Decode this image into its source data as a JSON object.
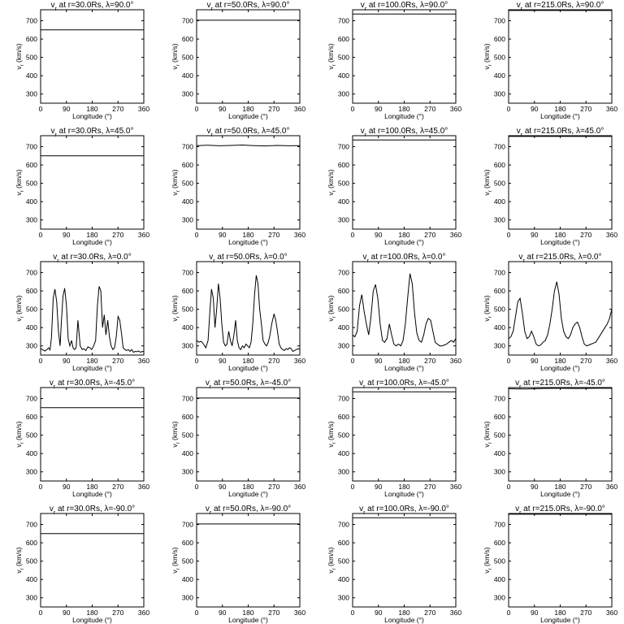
{
  "chart_data": [
    {
      "type": "line",
      "title": "v_r at r=30.0Rs, λ=90.0°",
      "radius": "30.0Rs",
      "latitude": "90.0°",
      "xlabel": "Longitude (°)",
      "ylabel": "v_r (km/s)",
      "xlim": [
        0,
        360
      ],
      "ylim": [
        250,
        760
      ],
      "xticks": [
        0,
        90,
        180,
        270,
        360
      ],
      "yticks": [
        300,
        400,
        500,
        600,
        700
      ],
      "x": [
        0,
        360
      ],
      "y": [
        650,
        650
      ]
    },
    {
      "type": "line",
      "title": "v_r at r=50.0Rs, λ=90.0°",
      "radius": "50.0Rs",
      "latitude": "90.0°",
      "xlabel": "Longitude (°)",
      "ylabel": "v_r (km/s)",
      "xlim": [
        0,
        360
      ],
      "ylim": [
        250,
        760
      ],
      "xticks": [
        0,
        90,
        180,
        270,
        360
      ],
      "yticks": [
        300,
        400,
        500,
        600,
        700
      ],
      "x": [
        0,
        360
      ],
      "y": [
        703,
        703
      ]
    },
    {
      "type": "line",
      "title": "v_r at r=100.0Rs, λ=90.0°",
      "radius": "100.0Rs",
      "latitude": "90.0°",
      "xlabel": "Longitude (°)",
      "ylabel": "v_r (km/s)",
      "xlim": [
        0,
        360
      ],
      "ylim": [
        250,
        760
      ],
      "xticks": [
        0,
        90,
        180,
        270,
        360
      ],
      "yticks": [
        300,
        400,
        500,
        600,
        700
      ],
      "x": [
        0,
        360
      ],
      "y": [
        737,
        737
      ]
    },
    {
      "type": "line",
      "title": "v_r at r=215.0Rs, λ=90.0°",
      "radius": "215.0Rs",
      "latitude": "90.0°",
      "xlabel": "Longitude (°)",
      "ylabel": "v_r (km/s)",
      "xlim": [
        0,
        360
      ],
      "ylim": [
        250,
        760
      ],
      "xticks": [
        0,
        90,
        180,
        270,
        360
      ],
      "yticks": [
        300,
        400,
        500,
        600,
        700
      ],
      "x": [
        0,
        360
      ],
      "y": [
        756,
        756
      ]
    },
    {
      "type": "line",
      "title": "v_r at r=30.0Rs, λ=45.0°",
      "radius": "30.0Rs",
      "latitude": "45.0°",
      "xlabel": "Longitude (°)",
      "ylabel": "v_r (km/s)",
      "xlim": [
        0,
        360
      ],
      "ylim": [
        250,
        760
      ],
      "xticks": [
        0,
        90,
        180,
        270,
        360
      ],
      "yticks": [
        300,
        400,
        500,
        600,
        700
      ],
      "x": [
        0,
        360
      ],
      "y": [
        650,
        650
      ]
    },
    {
      "type": "line",
      "title": "v_r at r=50.0Rs, λ=45.0°",
      "radius": "50.0Rs",
      "latitude": "45.0°",
      "xlabel": "Longitude (°)",
      "ylabel": "v_r (km/s)",
      "xlim": [
        0,
        360
      ],
      "ylim": [
        250,
        760
      ],
      "xticks": [
        0,
        90,
        180,
        270,
        360
      ],
      "yticks": [
        300,
        400,
        500,
        600,
        700
      ],
      "x": [
        0,
        40,
        80,
        120,
        160,
        200,
        240,
        280,
        320,
        360
      ],
      "y": [
        706,
        708,
        705,
        707,
        709,
        706,
        704,
        707,
        705,
        706
      ]
    },
    {
      "type": "line",
      "title": "v_r at r=100.0Rs, λ=45.0°",
      "radius": "100.0Rs",
      "latitude": "45.0°",
      "xlabel": "Longitude (°)",
      "ylabel": "v_r (km/s)",
      "xlim": [
        0,
        360
      ],
      "ylim": [
        250,
        760
      ],
      "xticks": [
        0,
        90,
        180,
        270,
        360
      ],
      "yticks": [
        300,
        400,
        500,
        600,
        700
      ],
      "x": [
        0,
        360
      ],
      "y": [
        737,
        737
      ]
    },
    {
      "type": "line",
      "title": "v_r at r=215.0Rs, λ=45.0°",
      "radius": "215.0Rs",
      "latitude": "45.0°",
      "xlabel": "Longitude (°)",
      "ylabel": "v_r (km/s)",
      "xlim": [
        0,
        360
      ],
      "ylim": [
        250,
        760
      ],
      "xticks": [
        0,
        90,
        180,
        270,
        360
      ],
      "yticks": [
        300,
        400,
        500,
        600,
        700
      ],
      "x": [
        0,
        360
      ],
      "y": [
        756,
        756
      ]
    },
    {
      "type": "line",
      "title": "v_r at r=30.0Rs, λ=0.0°",
      "radius": "30.0Rs",
      "latitude": "0.0°",
      "xlabel": "Longitude (°)",
      "ylabel": "v_r (km/s)",
      "xlim": [
        0,
        360
      ],
      "ylim": [
        250,
        760
      ],
      "xticks": [
        0,
        90,
        180,
        270,
        360
      ],
      "yticks": [
        300,
        400,
        500,
        600,
        700
      ],
      "x": [
        0,
        8,
        15,
        22,
        28,
        33,
        38,
        44,
        50,
        56,
        62,
        68,
        72,
        78,
        84,
        90,
        96,
        102,
        108,
        113,
        118,
        124,
        130,
        138,
        145,
        150,
        158,
        165,
        172,
        178,
        185,
        192,
        198,
        204,
        210,
        216,
        222,
        228,
        234,
        240,
        246,
        252,
        258,
        264,
        270,
        276,
        282,
        288,
        294,
        300,
        306,
        312,
        318,
        324,
        330,
        336,
        342,
        348,
        354,
        360
      ],
      "y": [
        285,
        278,
        272,
        280,
        290,
        278,
        350,
        560,
        610,
        540,
        380,
        300,
        420,
        570,
        615,
        520,
        340,
        300,
        330,
        290,
        280,
        290,
        440,
        300,
        280,
        285,
        275,
        295,
        290,
        280,
        300,
        330,
        520,
        625,
        600,
        400,
        470,
        360,
        440,
        350,
        300,
        280,
        290,
        350,
        460,
        440,
        370,
        290,
        280,
        275,
        280,
        270,
        280,
        265,
        270,
        268,
        272,
        265,
        270,
        268
      ]
    },
    {
      "type": "line",
      "title": "v_r at r=50.0Rs, λ=0.0°",
      "radius": "50.0Rs",
      "latitude": "0.0°",
      "xlabel": "Longitude (°)",
      "ylabel": "v_r (km/s)",
      "xlim": [
        0,
        360
      ],
      "ylim": [
        250,
        760
      ],
      "xticks": [
        0,
        90,
        180,
        270,
        360
      ],
      "yticks": [
        300,
        400,
        500,
        600,
        700
      ],
      "x": [
        0,
        8,
        16,
        24,
        32,
        40,
        46,
        52,
        58,
        64,
        70,
        76,
        82,
        88,
        94,
        100,
        106,
        112,
        118,
        124,
        130,
        136,
        142,
        148,
        154,
        160,
        166,
        172,
        178,
        184,
        190,
        196,
        202,
        208,
        214,
        220,
        226,
        232,
        238,
        244,
        250,
        256,
        262,
        270,
        276,
        282,
        288,
        294,
        300,
        306,
        312,
        318,
        324,
        330,
        336,
        342,
        348,
        354,
        360
      ],
      "y": [
        330,
        320,
        325,
        310,
        290,
        330,
        480,
        610,
        560,
        400,
        500,
        640,
        560,
        420,
        320,
        300,
        310,
        380,
        330,
        300,
        360,
        440,
        330,
        290,
        280,
        300,
        290,
        310,
        300,
        290,
        320,
        420,
        580,
        685,
        640,
        500,
        420,
        330,
        310,
        300,
        320,
        360,
        420,
        475,
        440,
        380,
        310,
        290,
        280,
        275,
        285,
        280,
        290,
        285,
        270,
        275,
        280,
        285,
        280
      ]
    },
    {
      "type": "line",
      "title": "v_r at r=100.0Rs, λ=0.0°",
      "radius": "100.0Rs",
      "latitude": "0.0°",
      "xlabel": "Longitude (°)",
      "ylabel": "v_r (km/s)",
      "xlim": [
        0,
        360
      ],
      "ylim": [
        250,
        760
      ],
      "xticks": [
        0,
        90,
        180,
        270,
        360
      ],
      "yticks": [
        300,
        400,
        500,
        600,
        700
      ],
      "x": [
        0,
        8,
        16,
        24,
        32,
        40,
        48,
        56,
        64,
        72,
        80,
        88,
        96,
        104,
        112,
        120,
        128,
        136,
        144,
        152,
        160,
        168,
        176,
        184,
        192,
        200,
        208,
        216,
        224,
        232,
        240,
        248,
        256,
        264,
        272,
        280,
        288,
        296,
        304,
        312,
        320,
        328,
        336,
        344,
        352,
        360
      ],
      "y": [
        360,
        350,
        380,
        520,
        580,
        490,
        420,
        360,
        460,
        600,
        635,
        560,
        420,
        330,
        320,
        340,
        420,
        360,
        310,
        300,
        310,
        300,
        330,
        420,
        560,
        695,
        640,
        480,
        370,
        330,
        320,
        360,
        420,
        450,
        440,
        380,
        320,
        310,
        300,
        300,
        305,
        310,
        320,
        330,
        320,
        340
      ]
    },
    {
      "type": "line",
      "title": "v_r at r=215.0Rs, λ=0.0°",
      "radius": "215.0Rs",
      "latitude": "0.0°",
      "xlabel": "Longitude (°)",
      "ylabel": "v_r (km/s)",
      "xlim": [
        0,
        360
      ],
      "ylim": [
        250,
        760
      ],
      "xticks": [
        0,
        90,
        180,
        270,
        360
      ],
      "yticks": [
        300,
        400,
        500,
        600,
        700
      ],
      "x": [
        0,
        8,
        16,
        24,
        32,
        40,
        48,
        56,
        64,
        72,
        80,
        88,
        96,
        104,
        112,
        120,
        128,
        136,
        144,
        152,
        160,
        168,
        176,
        184,
        192,
        200,
        208,
        216,
        224,
        232,
        240,
        248,
        256,
        264,
        272,
        280,
        288,
        296,
        304,
        312,
        320,
        328,
        336,
        344,
        352,
        360
      ],
      "y": [
        340,
        350,
        380,
        460,
        540,
        560,
        480,
        380,
        340,
        350,
        380,
        350,
        310,
        300,
        305,
        320,
        330,
        360,
        420,
        500,
        600,
        650,
        580,
        450,
        380,
        350,
        340,
        360,
        400,
        420,
        430,
        400,
        350,
        310,
        300,
        305,
        310,
        315,
        320,
        340,
        360,
        380,
        400,
        420,
        450,
        500
      ]
    },
    {
      "type": "line",
      "title": "v_r at r=30.0Rs, λ=-45.0°",
      "radius": "30.0Rs",
      "latitude": "-45.0°",
      "xlabel": "Longitude (°)",
      "ylabel": "v_r (km/s)",
      "xlim": [
        0,
        360
      ],
      "ylim": [
        250,
        760
      ],
      "xticks": [
        0,
        90,
        180,
        270,
        360
      ],
      "yticks": [
        300,
        400,
        500,
        600,
        700
      ],
      "x": [
        0,
        360
      ],
      "y": [
        650,
        650
      ]
    },
    {
      "type": "line",
      "title": "v_r at r=50.0Rs, λ=-45.0°",
      "radius": "50.0Rs",
      "latitude": "-45.0°",
      "xlabel": "Longitude (°)",
      "ylabel": "v_r (km/s)",
      "xlim": [
        0,
        360
      ],
      "ylim": [
        250,
        760
      ],
      "xticks": [
        0,
        90,
        180,
        270,
        360
      ],
      "yticks": [
        300,
        400,
        500,
        600,
        700
      ],
      "x": [
        0,
        360
      ],
      "y": [
        703,
        703
      ]
    },
    {
      "type": "line",
      "title": "v_r at r=100.0Rs, λ=-45.0°",
      "radius": "100.0Rs",
      "latitude": "-45.0°",
      "xlabel": "Longitude (°)",
      "ylabel": "v_r (km/s)",
      "xlim": [
        0,
        360
      ],
      "ylim": [
        250,
        760
      ],
      "xticks": [
        0,
        90,
        180,
        270,
        360
      ],
      "yticks": [
        300,
        400,
        500,
        600,
        700
      ],
      "x": [
        0,
        360
      ],
      "y": [
        737,
        737
      ]
    },
    {
      "type": "line",
      "title": "v_r at r=215.0Rs, λ=-45.0°",
      "radius": "215.0Rs",
      "latitude": "-45.0°",
      "xlabel": "Longitude (°)",
      "ylabel": "v_r (km/s)",
      "xlim": [
        0,
        360
      ],
      "ylim": [
        250,
        760
      ],
      "xticks": [
        0,
        90,
        180,
        270,
        360
      ],
      "yticks": [
        300,
        400,
        500,
        600,
        700
      ],
      "x": [
        0,
        60,
        120,
        180,
        240,
        300,
        360
      ],
      "y": [
        754,
        752,
        755,
        756,
        755,
        756,
        756
      ]
    },
    {
      "type": "line",
      "title": "v_r at r=30.0Rs, λ=-90.0°",
      "radius": "30.0Rs",
      "latitude": "-90.0°",
      "xlabel": "Longitude (°)",
      "ylabel": "v_r (km/s)",
      "xlim": [
        0,
        360
      ],
      "ylim": [
        250,
        760
      ],
      "xticks": [
        0,
        90,
        180,
        270,
        360
      ],
      "yticks": [
        300,
        400,
        500,
        600,
        700
      ],
      "x": [
        0,
        360
      ],
      "y": [
        650,
        650
      ]
    },
    {
      "type": "line",
      "title": "v_r at r=50.0Rs, λ=-90.0°",
      "radius": "50.0Rs",
      "latitude": "-90.0°",
      "xlabel": "Longitude (°)",
      "ylabel": "v_r (km/s)",
      "xlim": [
        0,
        360
      ],
      "ylim": [
        250,
        760
      ],
      "xticks": [
        0,
        90,
        180,
        270,
        360
      ],
      "yticks": [
        300,
        400,
        500,
        600,
        700
      ],
      "x": [
        0,
        360
      ],
      "y": [
        703,
        703
      ]
    },
    {
      "type": "line",
      "title": "v_r at r=100.0Rs, λ=-90.0°",
      "radius": "100.0Rs",
      "latitude": "-90.0°",
      "xlabel": "Longitude (°)",
      "ylabel": "v_r (km/s)",
      "xlim": [
        0,
        360
      ],
      "ylim": [
        250,
        760
      ],
      "xticks": [
        0,
        90,
        180,
        270,
        360
      ],
      "yticks": [
        300,
        400,
        500,
        600,
        700
      ],
      "x": [
        0,
        360
      ],
      "y": [
        737,
        737
      ]
    },
    {
      "type": "line",
      "title": "v_r at r=215.0Rs, λ=-90.0°",
      "radius": "215.0Rs",
      "latitude": "-90.0°",
      "xlabel": "Longitude (°)",
      "ylabel": "v_r (km/s)",
      "xlim": [
        0,
        360
      ],
      "ylim": [
        250,
        760
      ],
      "xticks": [
        0,
        90,
        180,
        270,
        360
      ],
      "yticks": [
        300,
        400,
        500,
        600,
        700
      ],
      "x": [
        0,
        360
      ],
      "y": [
        756,
        756
      ]
    }
  ]
}
